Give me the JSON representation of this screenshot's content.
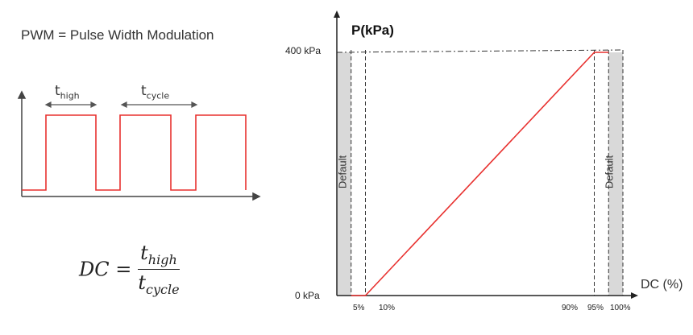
{
  "left_panel": {
    "title": "PWM = Pulse Width Modulation",
    "t_high": {
      "base": "t",
      "sub": "high"
    },
    "t_cycle": {
      "base": "t",
      "sub": "cycle"
    },
    "formula": {
      "lhs": "DC =",
      "num_base": "t",
      "num_sub": "high",
      "den_base": "t",
      "den_sub": "cycle"
    }
  },
  "chart": {
    "y_axis_title": "P(kPa)",
    "x_axis_title": "DC (%)",
    "y_ticks": [
      "400 kPa",
      "0 kPa"
    ],
    "x_ticks": [
      "5%",
      "10%",
      "90%",
      "95%",
      "100%"
    ],
    "default_label": "Default",
    "colors": {
      "signal": "#e8312f",
      "default_band": "#d9d9d9",
      "axis": "#222222"
    }
  },
  "chart_data": {
    "type": "line",
    "x_label": "DC (%)",
    "y_label": "P(kPa)",
    "series": [
      {
        "x": [
          5,
          10,
          90,
          95
        ],
        "y": [
          0,
          0,
          400,
          400
        ]
      }
    ],
    "default_regions_x": [
      [
        0,
        5
      ],
      [
        95,
        100
      ]
    ],
    "xlim": [
      0,
      100
    ],
    "ylim": [
      0,
      400
    ]
  }
}
